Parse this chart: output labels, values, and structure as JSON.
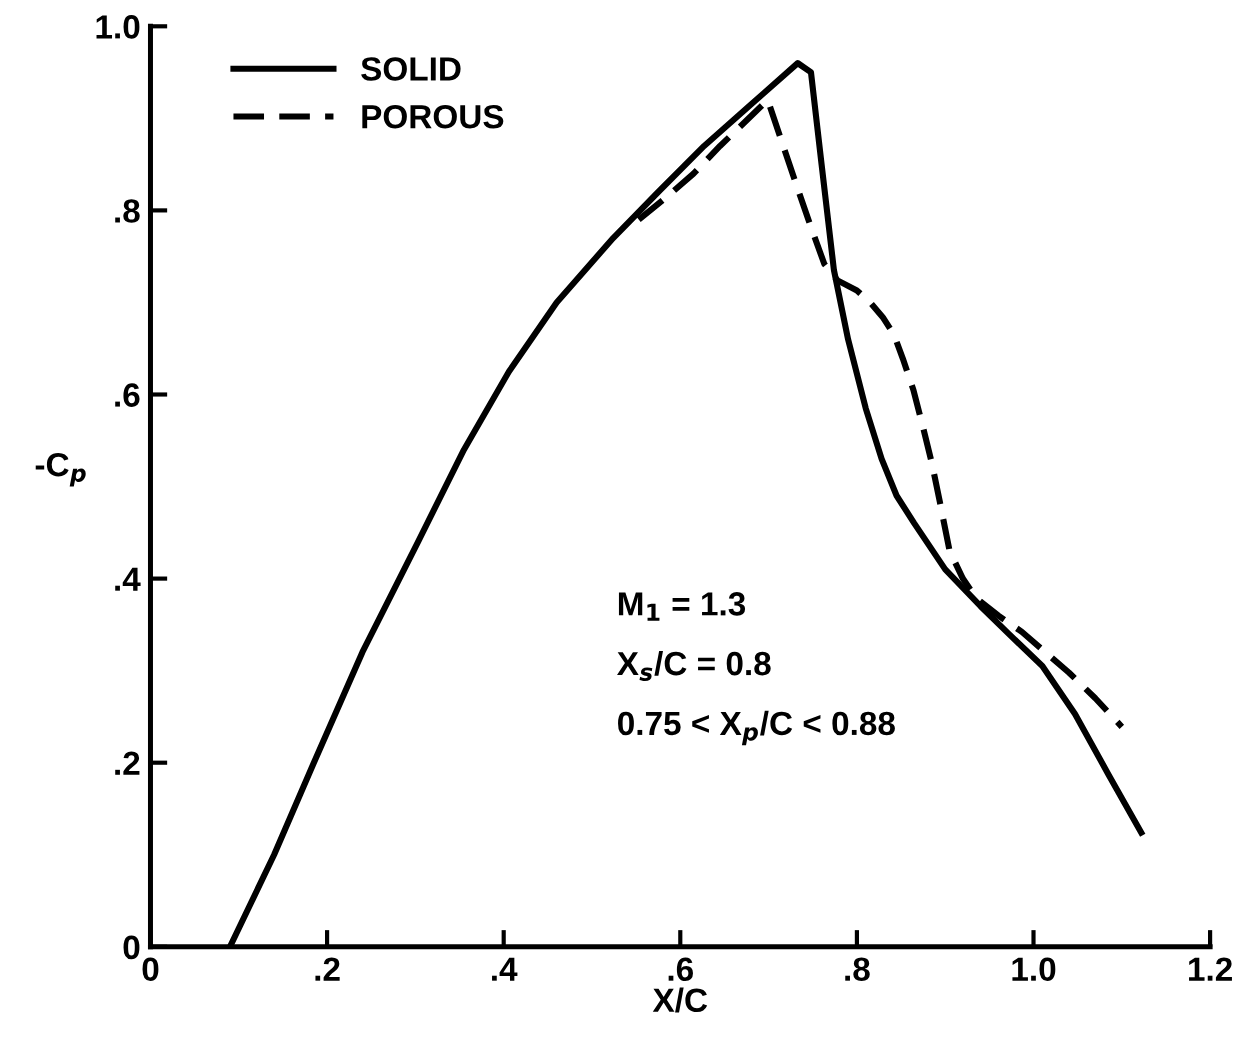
{
  "chart_data": {
    "type": "line",
    "xlabel": "X/C",
    "ylabel": "-C$_{p}$",
    "xlim": [
      0,
      1.2
    ],
    "ylim": [
      0,
      1.0
    ],
    "xticks": [
      0,
      {
        "value": 0.2,
        "label": ".2"
      },
      {
        "value": 0.4,
        "label": ".4"
      },
      {
        "value": 0.6,
        "label": ".6"
      },
      {
        "value": 0.8,
        "label": ".8"
      },
      {
        "value": 1.0,
        "label": "1.0"
      },
      {
        "value": 1.2,
        "label": "1.2"
      }
    ],
    "yticks": [
      0,
      {
        "value": 0.2,
        "label": ".2"
      },
      {
        "value": 0.4,
        "label": ".4"
      },
      {
        "value": 0.6,
        "label": ".6"
      },
      {
        "value": 0.8,
        "label": ".8"
      },
      {
        "value": 1.0,
        "label": "1.0"
      }
    ],
    "grid": false,
    "legend": "top left",
    "marker": "none",
    "series": [
      {
        "name": "SOLID",
        "color": "#000000",
        "line_style": "solid",
        "x": [
          0.09,
          0.14,
          0.185,
          0.24,
          0.303,
          0.355,
          0.406,
          0.46,
          0.524,
          0.575,
          0.627,
          0.68,
          0.733,
          0.748,
          0.76,
          0.774,
          0.79,
          0.81,
          0.828,
          0.845,
          0.865,
          0.9,
          0.94,
          0.972,
          1.01,
          1.047,
          1.085,
          1.122
        ],
        "values": [
          0,
          0.1,
          0.2,
          0.32,
          0.44,
          0.54,
          0.625,
          0.7,
          0.77,
          0.82,
          0.87,
          0.915,
          0.96,
          0.95,
          0.85,
          0.735,
          0.66,
          0.585,
          0.53,
          0.49,
          0.46,
          0.41,
          0.37,
          0.34,
          0.305,
          0.253,
          0.187,
          0.124
        ]
      },
      {
        "name": "POROUS",
        "color": "#000000",
        "line_style": "dashed",
        "x": [
          0.553,
          0.585,
          0.615,
          0.645,
          0.672,
          0.699,
          0.725,
          0.745,
          0.763,
          0.778,
          0.8,
          0.815,
          0.83,
          0.842,
          0.852,
          0.864,
          0.875,
          0.885,
          0.894,
          0.905,
          0.92,
          0.935,
          0.96,
          0.987,
          1.04,
          1.07,
          1.1
        ],
        "values": [
          0.79,
          0.815,
          0.84,
          0.87,
          0.895,
          0.92,
          0.846,
          0.79,
          0.742,
          0.724,
          0.713,
          0.7,
          0.683,
          0.665,
          0.639,
          0.605,
          0.564,
          0.525,
          0.483,
          0.43,
          0.4,
          0.379,
          0.36,
          0.342,
          0.298,
          0.27,
          0.239
        ]
      }
    ],
    "annotations": [
      "M$_{1}$ = 1.3",
      "X$_{s}$/C = 0.8",
      "0.75 < X$_{p}$/C < 0.88"
    ]
  }
}
